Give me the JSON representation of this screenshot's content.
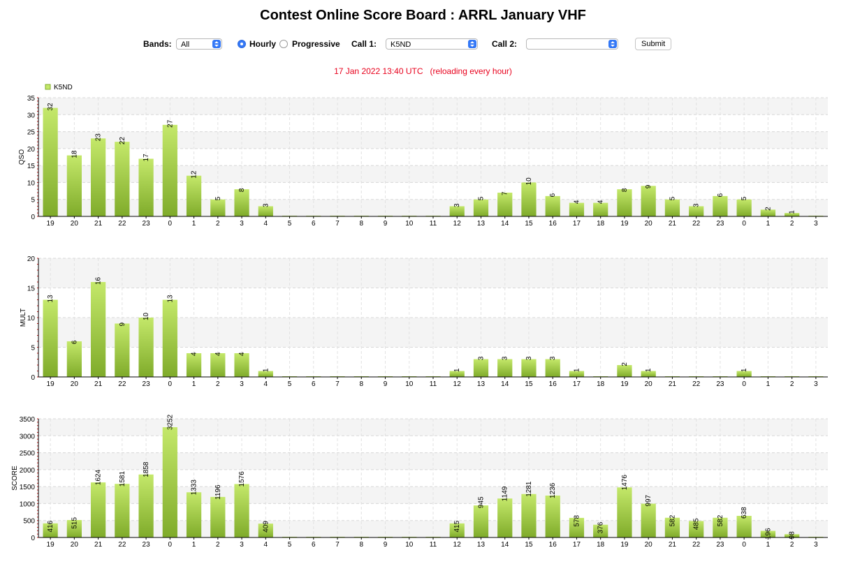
{
  "page": {
    "title": "Contest Online Score Board : ARRL January VHF",
    "status_time": "17 Jan 2022 13:40 UTC",
    "status_note": "(reloading every hour)"
  },
  "controls": {
    "bands_label": "Bands:",
    "bands_value": "All",
    "hourly_label": "Hourly",
    "progressive_label": "Progressive",
    "hourly_selected": true,
    "call1_label": "Call 1:",
    "call1_value": "K5ND",
    "call2_label": "Call 2:",
    "call2_value": "",
    "submit_label": "Submit"
  },
  "colors": {
    "bar_top": "#c4e86a",
    "bar_bottom": "#7fab2a",
    "axis_tick_red": "#d01010"
  },
  "chart_data": [
    {
      "type": "bar",
      "title": "",
      "legend": [
        "K5ND"
      ],
      "legend_placement": "top-left",
      "xlabel": "",
      "ylabel": "QSO",
      "ylim": [
        0,
        35
      ],
      "yticks": [
        0,
        5,
        10,
        15,
        20,
        25,
        30,
        35
      ],
      "grid": true,
      "categories": [
        "19",
        "20",
        "21",
        "22",
        "23",
        "0",
        "1",
        "2",
        "3",
        "4",
        "5",
        "6",
        "7",
        "8",
        "9",
        "10",
        "11",
        "12",
        "13",
        "14",
        "15",
        "16",
        "17",
        "18",
        "19",
        "20",
        "21",
        "22",
        "23",
        "0",
        "1",
        "2",
        "3"
      ],
      "series": [
        {
          "name": "K5ND",
          "values": [
            32,
            18,
            23,
            22,
            17,
            27,
            12,
            5,
            8,
            3,
            0,
            0,
            0,
            0,
            0,
            0,
            0,
            3,
            5,
            7,
            10,
            6,
            4,
            4,
            8,
            9,
            5,
            3,
            6,
            5,
            2,
            1,
            0
          ],
          "labels": [
            "32",
            "18",
            "23",
            "22",
            "17",
            "27",
            "12",
            "5",
            "8",
            "3",
            "",
            "",
            "",
            "",
            "",
            "",
            "",
            "3",
            "5",
            "7",
            "10",
            "6",
            "4",
            "4",
            "8",
            "9",
            "5",
            "3",
            "6",
            "5",
            "2",
            "1",
            ""
          ]
        }
      ]
    },
    {
      "type": "bar",
      "title": "",
      "xlabel": "",
      "ylabel": "MULT",
      "ylim": [
        0,
        20
      ],
      "yticks": [
        0,
        5,
        10,
        15,
        20
      ],
      "grid": true,
      "categories": [
        "19",
        "20",
        "21",
        "22",
        "23",
        "0",
        "1",
        "2",
        "3",
        "4",
        "5",
        "6",
        "7",
        "8",
        "9",
        "10",
        "11",
        "12",
        "13",
        "14",
        "15",
        "16",
        "17",
        "18",
        "19",
        "20",
        "21",
        "22",
        "23",
        "0",
        "1",
        "2",
        "3"
      ],
      "series": [
        {
          "name": "K5ND",
          "values": [
            13,
            6,
            16,
            9,
            10,
            13,
            4,
            4,
            4,
            1,
            0,
            0,
            0,
            0,
            0,
            0,
            0,
            1,
            3,
            3,
            3,
            3,
            1,
            0,
            2,
            1,
            0,
            0,
            0,
            1,
            0,
            0,
            0
          ],
          "labels": [
            "13",
            "6",
            "16",
            "9",
            "10",
            "13",
            "4",
            "4",
            "4",
            "1",
            "",
            "",
            "",
            "",
            "",
            "",
            "",
            "1",
            "3",
            "3",
            "3",
            "3",
            "1",
            "",
            "2",
            "1",
            "",
            "",
            "",
            "1",
            "",
            "",
            ""
          ]
        }
      ]
    },
    {
      "type": "bar",
      "title": "",
      "xlabel": "",
      "ylabel": "SCORE",
      "ylim": [
        0,
        3500
      ],
      "yticks": [
        0,
        500,
        1000,
        1500,
        2000,
        2500,
        3000,
        3500
      ],
      "grid": true,
      "categories": [
        "19",
        "20",
        "21",
        "22",
        "23",
        "0",
        "1",
        "2",
        "3",
        "4",
        "5",
        "6",
        "7",
        "8",
        "9",
        "10",
        "11",
        "12",
        "13",
        "14",
        "15",
        "16",
        "17",
        "18",
        "19",
        "20",
        "21",
        "22",
        "23",
        "0",
        "1",
        "2",
        "3"
      ],
      "series": [
        {
          "name": "K5ND",
          "values": [
            416,
            515,
            1624,
            1581,
            1858,
            3252,
            1333,
            1196,
            1576,
            409,
            0,
            0,
            0,
            0,
            0,
            0,
            0,
            415,
            945,
            1149,
            1281,
            1236,
            578,
            376,
            1476,
            997,
            582,
            485,
            582,
            638,
            196,
            98,
            0
          ],
          "labels": [
            "416",
            "515",
            "1624",
            "1581",
            "1858",
            "3252",
            "1333",
            "1196",
            "1576",
            "409",
            "",
            "",
            "",
            "",
            "",
            "",
            "",
            "415",
            "945",
            "1149",
            "1281",
            "1236",
            "578",
            "376",
            "1476",
            "997",
            "582",
            "485",
            "582",
            "638",
            "196",
            "98",
            ""
          ]
        }
      ]
    }
  ]
}
